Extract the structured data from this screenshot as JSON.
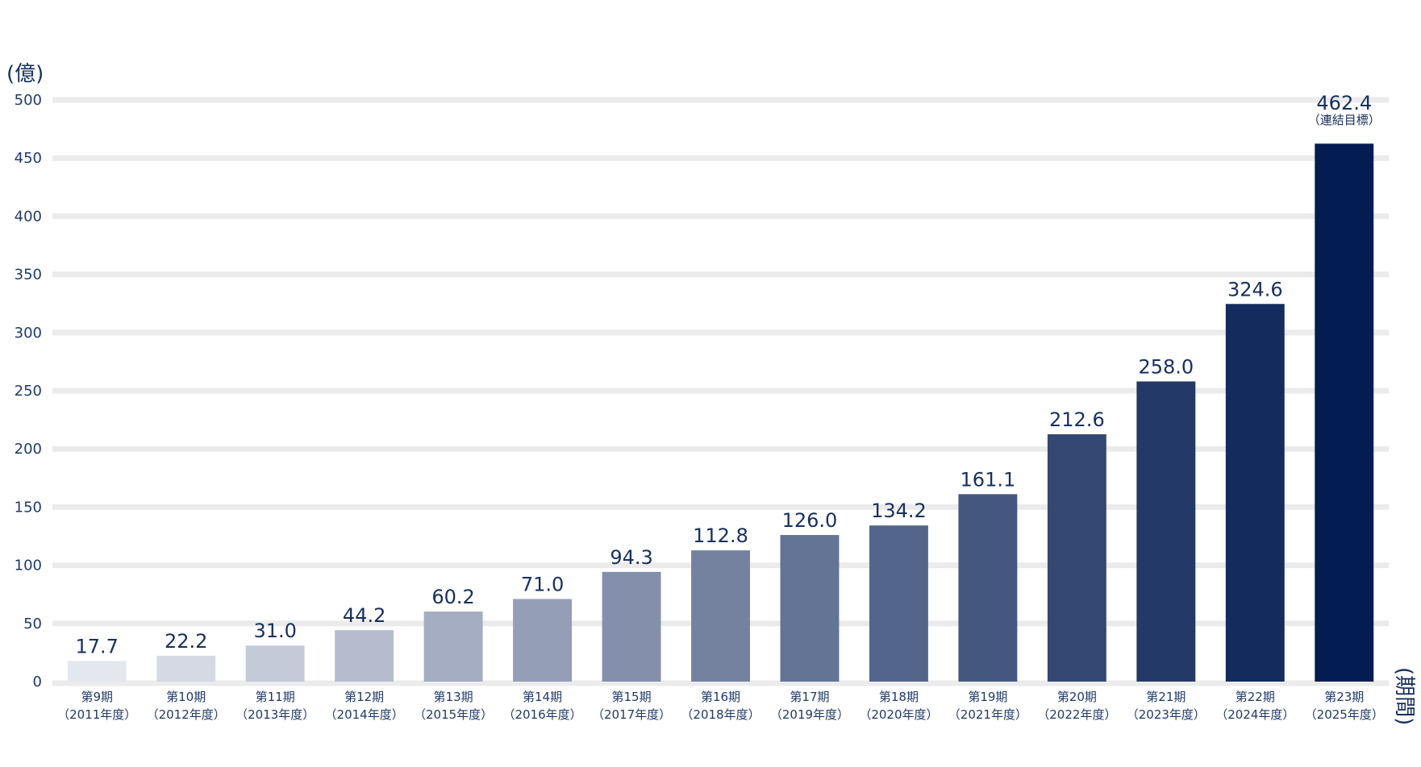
{
  "chart_data": {
    "type": "bar",
    "y_unit": "(億)",
    "x_unit": "(期間)",
    "ylim": [
      0,
      500
    ],
    "yticks": [
      0,
      50,
      100,
      150,
      200,
      250,
      300,
      350,
      400,
      450,
      500
    ],
    "grid": true,
    "categories": [
      {
        "period": "第9期",
        "year": "（2011年度）"
      },
      {
        "period": "第10期",
        "year": "（2012年度）"
      },
      {
        "period": "第11期",
        "year": "（2013年度）"
      },
      {
        "period": "第12期",
        "year": "（2014年度）"
      },
      {
        "period": "第13期",
        "year": "（2015年度）"
      },
      {
        "period": "第14期",
        "year": "（2016年度）"
      },
      {
        "period": "第15期",
        "year": "（2017年度）"
      },
      {
        "period": "第16期",
        "year": "（2018年度）"
      },
      {
        "period": "第17期",
        "year": "（2019年度）"
      },
      {
        "period": "第18期",
        "year": "（2020年度）"
      },
      {
        "period": "第19期",
        "year": "（2021年度）"
      },
      {
        "period": "第20期",
        "year": "（2022年度）"
      },
      {
        "period": "第21期",
        "year": "（2023年度）"
      },
      {
        "period": "第22期",
        "year": "（2024年度）"
      },
      {
        "period": "第23期",
        "year": "（2025年度）"
      }
    ],
    "values": [
      17.7,
      22.2,
      31.0,
      44.2,
      60.2,
      71.0,
      94.3,
      112.8,
      126.0,
      134.2,
      161.1,
      212.6,
      258.0,
      324.6,
      462.4
    ],
    "value_labels": [
      "17.7",
      "22.2",
      "31.0",
      "44.2",
      "60.2",
      "71.0",
      "94.3",
      "112.8",
      "126.0",
      "134.2",
      "161.1",
      "212.6",
      "258.0",
      "324.6",
      "462.4"
    ],
    "last_bar_note": "（連結目標）",
    "colors": {
      "bar_start": "#e4e7ee",
      "bar_end": "#031d52",
      "text": "#16305f",
      "grid": "#ebebeb"
    }
  }
}
